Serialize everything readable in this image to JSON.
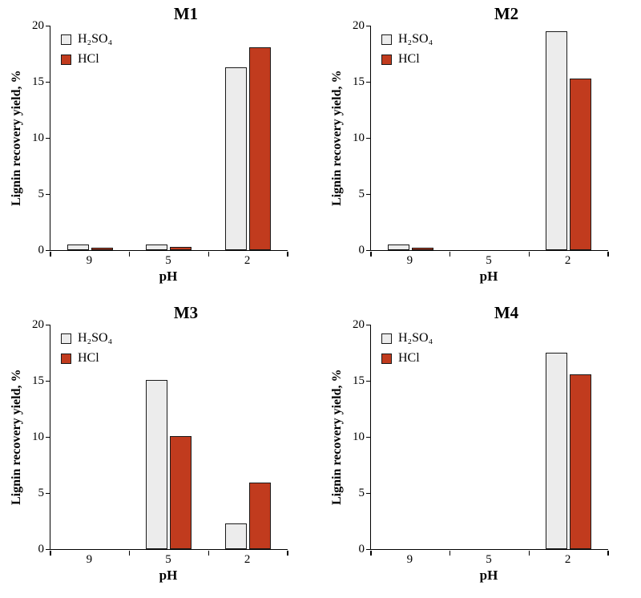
{
  "figure": {
    "background": "#ffffff"
  },
  "colors": {
    "h2so4_fill": "#ececec",
    "hcl_fill": "#c13b1e",
    "axis": "#000000"
  },
  "chart_data": [
    {
      "type": "bar",
      "title": "M1",
      "xlabel": "pH",
      "ylabel": "Lignin recovery yield, %",
      "categories": [
        "9",
        "5",
        "2"
      ],
      "ylim": [
        0,
        20
      ],
      "yticks": [
        0,
        5,
        10,
        15,
        20
      ],
      "grid": false,
      "legend_position": "top-left",
      "series": [
        {
          "name": "H₂SO₄",
          "values": [
            0.5,
            0.5,
            16.3
          ]
        },
        {
          "name": "HCl",
          "values": [
            0.2,
            0.3,
            18.1
          ]
        }
      ]
    },
    {
      "type": "bar",
      "title": "M2",
      "xlabel": "pH",
      "ylabel": "Lignin recovery yield, %",
      "categories": [
        "9",
        "5",
        "2"
      ],
      "ylim": [
        0,
        20
      ],
      "yticks": [
        0,
        5,
        10,
        15,
        20
      ],
      "grid": false,
      "legend_position": "top-left",
      "series": [
        {
          "name": "H₂SO₄",
          "values": [
            0.5,
            0,
            19.5
          ]
        },
        {
          "name": "HCl",
          "values": [
            0.2,
            0,
            15.3
          ]
        }
      ]
    },
    {
      "type": "bar",
      "title": "M3",
      "xlabel": "pH",
      "ylabel": "Lignin recovery yield, %",
      "categories": [
        "9",
        "5",
        "2"
      ],
      "ylim": [
        0,
        20
      ],
      "yticks": [
        0,
        5,
        10,
        15,
        20
      ],
      "grid": false,
      "legend_position": "top-left",
      "series": [
        {
          "name": "H₂SO₄",
          "values": [
            0,
            15.1,
            2.3
          ]
        },
        {
          "name": "HCl",
          "values": [
            0,
            10.1,
            5.9
          ]
        }
      ]
    },
    {
      "type": "bar",
      "title": "M4",
      "xlabel": "pH",
      "ylabel": "Lignin recovery yield, %",
      "categories": [
        "9",
        "5",
        "2"
      ],
      "ylim": [
        0,
        20
      ],
      "yticks": [
        0,
        5,
        10,
        15,
        20
      ],
      "grid": false,
      "legend_position": "top-left",
      "series": [
        {
          "name": "H₂SO₄",
          "values": [
            0,
            0,
            17.5
          ]
        },
        {
          "name": "HCl",
          "values": [
            0,
            0,
            15.6
          ]
        }
      ]
    }
  ]
}
